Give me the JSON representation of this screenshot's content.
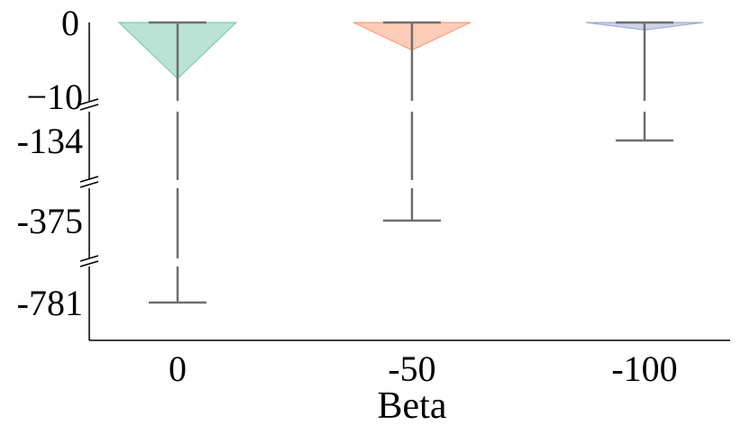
{
  "chart_data": {
    "type": "violin",
    "xlabel": "Beta",
    "ylabel": "",
    "categories": [
      "0",
      "-50",
      "-100"
    ],
    "y_tick_labels": [
      "0",
      "−10",
      "-134",
      "-375",
      "-781"
    ],
    "broken_y_axis": true,
    "grid": false,
    "legend": "none",
    "series": [
      {
        "category": "0",
        "color": "#66c2a5",
        "max": 0,
        "min": -781,
        "violin_tip": -7.5
      },
      {
        "category": "-50",
        "color": "#fc8d62",
        "max": 0,
        "min": -375,
        "violin_tip": -3.7
      },
      {
        "category": "-100",
        "color": "#8da0cb",
        "max": 0,
        "min": -134,
        "violin_tip": -1.0
      }
    ]
  }
}
